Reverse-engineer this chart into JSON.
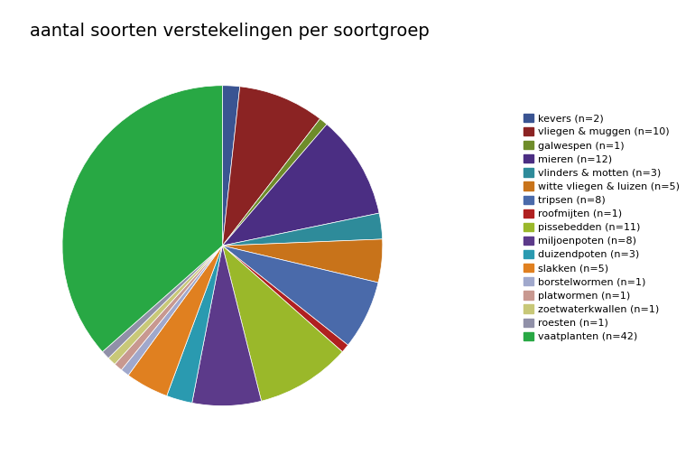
{
  "title": "aantal soorten verstekelingen per soortgroep",
  "labels": [
    "kevers (n=2)",
    "vliegen & muggen (n=10)",
    "galwespen (n=1)",
    "mieren (n=12)",
    "vlinders & motten (n=3)",
    "witte vliegen & luizen (n=5)",
    "tripsen (n=8)",
    "roofmijten (n=1)",
    "pissebedden (n=11)",
    "miljoenpoten (n=8)",
    "duizendpoten (n=3)",
    "slakken (n=5)",
    "borstelwormen (n=1)",
    "platwormen (n=1)",
    "zoetwaterkwallen (n=1)",
    "roesten (n=1)",
    "vaatplanten (n=42)"
  ],
  "values": [
    2,
    10,
    1,
    12,
    3,
    5,
    8,
    1,
    11,
    8,
    3,
    5,
    1,
    1,
    1,
    1,
    42
  ],
  "colors": [
    "#3a5492",
    "#8b2323",
    "#6e8c2a",
    "#4b2e83",
    "#2e8b9a",
    "#c8731a",
    "#4a6aaa",
    "#b02020",
    "#9ab82a",
    "#5c3a8a",
    "#2a9ab0",
    "#e08020",
    "#a0a8cc",
    "#c89890",
    "#c8c878",
    "#9090a8",
    "#28a844"
  ],
  "startangle": 90,
  "title_fontsize": 14,
  "legend_fontsize": 8,
  "figsize": [
    7.7,
    5.04
  ],
  "dpi": 100
}
